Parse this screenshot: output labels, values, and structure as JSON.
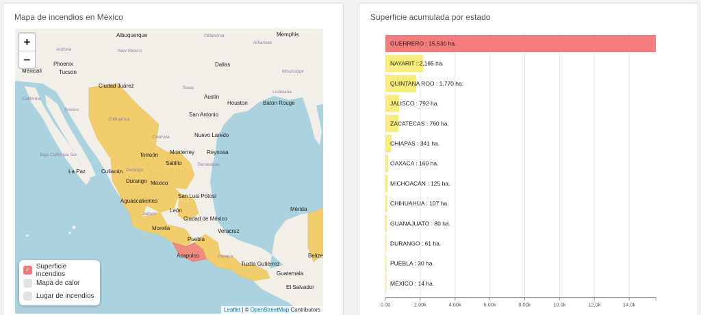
{
  "map_panel": {
    "title": "Mapa de incendios en México",
    "zoom_in": "+",
    "zoom_out": "−",
    "layers": [
      {
        "label": "Superficie incendios",
        "checked": true
      },
      {
        "label": "Mapa de calor",
        "checked": false
      },
      {
        "label": "Lugar de incendios",
        "checked": false
      }
    ],
    "attribution": {
      "leaflet": "Leaflet",
      "separator": " | © ",
      "osm": "OpenStreetMap",
      "contributors": " Contributors"
    },
    "labels": {
      "cities": [
        "Albuquerque",
        "Phoenix",
        "Tucson",
        "Mexicali",
        "Dallas",
        "Austin",
        "Houston",
        "Baton Rouge",
        "Memphis",
        "San Antonio",
        "Nuevo Laredo",
        "Monterrey",
        "Reynosa",
        "Saltillo",
        "Torreón",
        "Ciudad Juárez",
        "Culiacán",
        "Durango",
        "México",
        "San Luis Potosí",
        "La Paz",
        "León",
        "Aguascalientes",
        "Morelia",
        "Ciudad de México",
        "Puebla",
        "Veracruz",
        "Acapulco",
        "Tuxtla Gutiérrez",
        "Guatemala",
        "Mérida",
        "Belize",
        "El Salvador"
      ],
      "states": [
        "Arizona",
        "New Mexico",
        "Texas",
        "Oklahoma",
        "Arkansas",
        "Mississippi",
        "Louisiana",
        "California",
        "Chihuahua",
        "Sonora",
        "Coahuila",
        "Baja California Sur",
        "Durango",
        "Jalisco",
        "Oaxaca",
        "Tamaulipas"
      ]
    }
  },
  "chart_panel": {
    "title": "Superficie acumulada por estado"
  },
  "colors": {
    "top_bar": "#f47c7c",
    "bar": "#f8ec7a",
    "state_fill": "#f2cd6c",
    "state_fill_high": "#f28b7f",
    "land": "#f2efe9",
    "water": "#aad3df"
  },
  "chart_data": {
    "type": "bar",
    "orientation": "horizontal",
    "title": "Superficie acumulada por estado",
    "unit": "ha.",
    "xlim": [
      0,
      15530
    ],
    "x_ticks": [
      "0.00",
      "2.00k",
      "4.00k",
      "6.00k",
      "8.00k",
      "10.0k",
      "12.0k",
      "14.0k"
    ],
    "x_tick_values": [
      0,
      2000,
      4000,
      6000,
      8000,
      10000,
      12000,
      14000
    ],
    "categories": [
      "GUERRERO",
      "NAYARIT",
      "QUINTANA ROO",
      "JALISCO",
      "ZACATECAS",
      "CHIAPAS",
      "OAXACA",
      "MICHOACÁN",
      "CHIHUAHUA",
      "GUANAJUATO",
      "DURANGO",
      "PUEBLA",
      "MÉXICO"
    ],
    "values": [
      15530,
      2165,
      1770,
      792,
      760,
      341,
      160,
      125,
      107,
      80,
      61,
      30,
      14
    ],
    "labels": [
      "GUERRERO : 15,530 ha.",
      "NAYARIT : 2,165 ha.",
      "QUINTANA ROO : 1,770 ha.",
      "JALISCO : 792 ha.",
      "ZACATECAS : 760 ha.",
      "CHIAPAS : 341 ha.",
      "OAXACA : 160 ha.",
      "MICHOACÁN : 125 ha.",
      "CHIHUAHUA : 107 ha.",
      "GUANAJUATO : 80 ha.",
      "DURANGO : 61 ha.",
      "PUEBLA : 30 ha.",
      "MÉXICO : 14 ha."
    ]
  }
}
